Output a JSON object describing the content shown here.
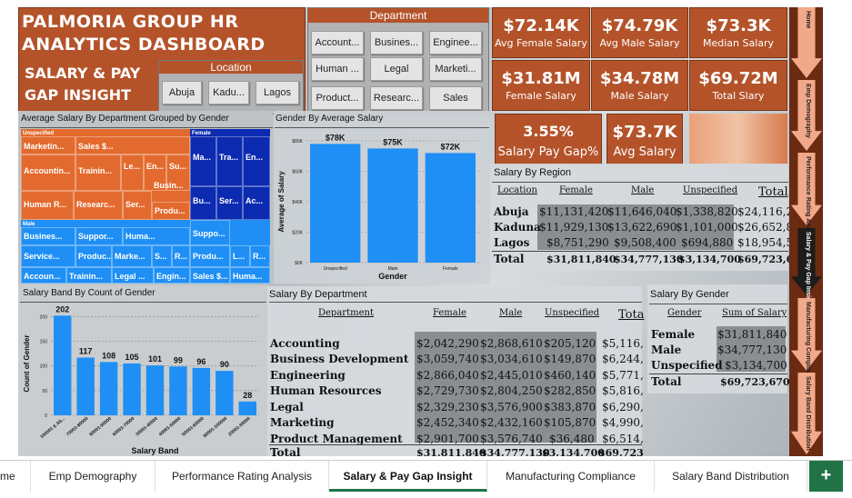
{
  "title": {
    "line1": "PALMORIA GROUP HR",
    "line2": "ANALYTICS  DASHBOARD",
    "line3": "SALARY & PAY",
    "line4": "GAP INSIGHT"
  },
  "location_slicer": {
    "header": "Location",
    "items": [
      "Abuja",
      "Kadu...",
      "Lagos"
    ]
  },
  "department_slicer": {
    "header": "Department",
    "items": [
      "Account...",
      "Busines...",
      "Enginee...",
      "Human ...",
      "Legal",
      "Marketi...",
      "Product...",
      "Researc...",
      "Sales"
    ]
  },
  "kpis": [
    {
      "value": "$72.14K",
      "label": "Avg Female Salary"
    },
    {
      "value": "$74.79K",
      "label": "Avg Male Salary"
    },
    {
      "value": "$73.3K",
      "label": "Median Salary"
    },
    {
      "value": "$31.81M",
      "label": "Female Salary"
    },
    {
      "value": "$34.78M",
      "label": "Male Salary"
    },
    {
      "value": "$69.72M",
      "label": "Total Slary"
    },
    {
      "value": "3.55%",
      "label": "Salary Pay Gap%"
    },
    {
      "value": "$73.7K",
      "label": "Avg Salary"
    }
  ],
  "treemap": {
    "title": "Average Salary By Department Grouped by Gender",
    "groups": {
      "unspecified": "Unspecified",
      "female": "Female",
      "male": "Male"
    },
    "cells_unspecified": [
      "Marketin...",
      "Sales $...",
      "Accountin...",
      "Trainin...",
      "Le...",
      "En...",
      "Su...",
      "Busin...",
      "Human R...",
      "Researc...",
      "Ser...",
      "Produ..."
    ],
    "cells_female": [
      "Ma...",
      "Tra...",
      "En...",
      "Bu...",
      "Ser...",
      "Ac...",
      "Suppo...",
      "Produ...",
      "L...",
      "R...",
      "Sales $...",
      "Huma..."
    ],
    "cells_male": [
      "Busines...",
      "Suppor...",
      "Huma...",
      "Service...",
      "Produc...",
      "Marke...",
      "S...",
      "R...",
      "Accoun...",
      "Trainin...",
      "Legal ...",
      "Engin..."
    ]
  },
  "gender_chart_title": "Gender By Average Salary",
  "salary_band_title": "Salary Band By Count of Gender",
  "chart_data": [
    {
      "type": "bar",
      "title": "Gender By Average Salary",
      "xlabel": "Gender",
      "ylabel": "Average of Salary",
      "categories": [
        "Unspecified",
        "Male",
        "Female"
      ],
      "values": [
        78000,
        75000,
        72000
      ],
      "data_labels": [
        "$78K",
        "$75K",
        "$72K"
      ],
      "y_ticks": [
        "$0K",
        "$20K",
        "$40K",
        "$60K",
        "$80K"
      ],
      "ylim": [
        0,
        80000
      ],
      "color": "#1f8ff5"
    },
    {
      "type": "bar",
      "title": "Salary Band By Count of Gender",
      "xlabel": "Salary Band",
      "ylabel": "Count of Gender",
      "categories": [
        "100001 & Ab...",
        "70001-80000",
        "80001-90000",
        "60001-70000",
        "30001-40000",
        "40001-50000",
        "50001-60000",
        "90001-100000",
        "20001-30000"
      ],
      "values": [
        202,
        117,
        108,
        105,
        101,
        99,
        96,
        90,
        28
      ],
      "y_ticks": [
        "0",
        "50",
        "100",
        "150",
        "200"
      ],
      "ylim": [
        0,
        210
      ],
      "color": "#1f8ff5"
    }
  ],
  "region_table": {
    "title": "Salary By Region",
    "headers": [
      "Location",
      "Female",
      "Male",
      "Unspecified",
      "Total"
    ],
    "rows": [
      [
        "Abuja",
        "$11,131,420",
        "$11,646,040",
        "$1,338,820",
        "$24,116,2"
      ],
      [
        "Kaduna",
        "$11,929,130",
        "$13,622,690",
        "$1,101,000",
        "$26,652,8"
      ],
      [
        "Lagos",
        "$8,751,290",
        "$9,508,400",
        "$694,880",
        "$18,954,5"
      ]
    ],
    "total": [
      "Total",
      "$31,811,840",
      "$34,777,130",
      "$3,134,700",
      "$69,723,6"
    ]
  },
  "dept_table": {
    "title": "Salary By Department",
    "headers": [
      "Department",
      "Female",
      "Male",
      "Unspecified",
      "Tota"
    ],
    "rows": [
      [
        "Accounting",
        "$2,042,290",
        "$2,868,610",
        "$205,120",
        "$5,116,"
      ],
      [
        "Business Development",
        "$3,059,740",
        "$3,034,610",
        "$149,870",
        "$6,244,"
      ],
      [
        "Engineering",
        "$2,866,040",
        "$2,445,010",
        "$460,140",
        "$5,771,"
      ],
      [
        "Human Resources",
        "$2,729,730",
        "$2,804,250",
        "$282,850",
        "$5,816,"
      ],
      [
        "Legal",
        "$2,329,230",
        "$3,576,900",
        "$383,870",
        "$6,290,"
      ],
      [
        "Marketing",
        "$2,452,340",
        "$2,432,160",
        "$105,870",
        "$4,990,"
      ],
      [
        "Product Management",
        "$2,901,700",
        "$3,576,740",
        "$36,480",
        "$6,514,"
      ]
    ],
    "total": [
      "Total",
      "$31,811,840",
      "$34,777,130",
      "$3,134,700",
      "$69,723"
    ]
  },
  "gender_table": {
    "title": "Salary By Gender",
    "headers": [
      "Gender",
      "Sum of Salary"
    ],
    "rows": [
      [
        "Female",
        "$31,811,840"
      ],
      [
        "Male",
        "$34,777,130"
      ],
      [
        "Unspecified",
        "$3,134,700"
      ]
    ],
    "total": [
      "Total",
      "$69,723,670"
    ]
  },
  "side_nav": [
    "Home",
    "Emp Demography",
    "Performance Rating Analysis",
    "Salary & Pay Gap Insight",
    "Manufacturing Compliance",
    "Salary Band Distribution"
  ],
  "tabs": [
    "me",
    "Emp Demography",
    "Performance Rating Analysis",
    "Salary & Pay Gap Insight",
    "Manufacturing Compliance",
    "Salary Band Distribution"
  ],
  "add_tab": "+"
}
